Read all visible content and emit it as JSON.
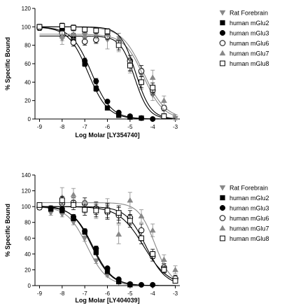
{
  "chart_data": [
    {
      "type": "scatter",
      "xlabel": "Log Molar [LY354740]",
      "ylabel": "% Specific Bound",
      "xlim": [
        -9.2,
        -2.8
      ],
      "ylim": [
        0,
        120
      ],
      "xticks": [
        "-9",
        "-8",
        "-7",
        "-6",
        "-5",
        "-4",
        "-3"
      ],
      "yticks": [
        "0",
        "20",
        "40",
        "60",
        "80",
        "100",
        "120"
      ],
      "legend": "right",
      "grid": false,
      "series": [
        {
          "name": "Rat Forebrain",
          "marker": "triangle-down",
          "fill": "#888888",
          "color": "#888888",
          "x": [
            -9,
            -8,
            -7.5,
            -7,
            -6.5,
            -6,
            -5.5,
            -5,
            -4.5,
            -4,
            -3.5,
            -3
          ],
          "y": [
            100,
            87,
            90,
            91,
            88,
            86,
            83,
            58,
            48,
            26,
            10,
            1
          ],
          "err": [
            3,
            6,
            5,
            4,
            5,
            10,
            10,
            8,
            7,
            6,
            4,
            2
          ],
          "curve": {
            "top": 100,
            "bottom": 0,
            "logec50": -4.4,
            "hill": 0.9
          }
        },
        {
          "name": "human mGlu2",
          "marker": "square",
          "fill": "#000000",
          "color": "#000000",
          "x": [
            -9,
            -8,
            -7.5,
            -7,
            -6.5,
            -6,
            -5.5,
            -5,
            -4.5
          ],
          "y": [
            100,
            95,
            86,
            60,
            33,
            12,
            4,
            2,
            1
          ],
          "err": [
            2,
            3,
            3,
            3,
            3,
            2,
            1,
            1,
            1
          ],
          "curve": {
            "top": 100,
            "bottom": 0,
            "logec50": -6.85,
            "hill": 1.0
          }
        },
        {
          "name": "human mGlu3",
          "marker": "circle",
          "fill": "#000000",
          "color": "#000000",
          "x": [
            -9,
            -8,
            -7.5,
            -7,
            -6.5,
            -6,
            -5.5,
            -5,
            -4.5,
            -4
          ],
          "y": [
            100,
            97,
            90,
            63,
            41,
            19,
            7,
            3,
            1,
            0
          ],
          "err": [
            2,
            3,
            3,
            3,
            3,
            2,
            1,
            1,
            1,
            1
          ],
          "curve": {
            "top": 100,
            "bottom": 0,
            "logec50": -6.7,
            "hill": 1.0
          }
        },
        {
          "name": "human mGlu6",
          "marker": "circle",
          "fill": "#ffffff",
          "color": "#000000",
          "x": [
            -9,
            -8,
            -7.5,
            -7,
            -6.5,
            -6,
            -5.5,
            -5,
            -4.5,
            -4,
            -3.5
          ],
          "y": [
            99,
            93,
            83,
            84,
            86,
            90,
            84,
            63,
            52,
            31,
            12
          ],
          "err": [
            3,
            4,
            4,
            4,
            4,
            4,
            5,
            6,
            6,
            5,
            3
          ],
          "curve": {
            "top": 90,
            "bottom": 0,
            "logec50": -4.8,
            "hill": 1.4
          }
        },
        {
          "name": "human mGlu7",
          "marker": "triangle-up",
          "fill": "#888888",
          "color": "#888888",
          "x": [
            -8,
            -7.5,
            -7,
            -6.5,
            -6,
            -5.5,
            -5,
            -4.5,
            -4,
            -3.5,
            -3
          ],
          "y": [
            90,
            92,
            91,
            92,
            92,
            87,
            60,
            40,
            45,
            20,
            2
          ],
          "err": [
            5,
            5,
            5,
            5,
            5,
            6,
            7,
            8,
            8,
            5,
            3
          ],
          "curve": {
            "top": 92,
            "bottom": 0,
            "logec50": -4.4,
            "hill": 1.0
          }
        },
        {
          "name": "human mGlu8",
          "marker": "square",
          "fill": "#ffffff",
          "color": "#000000",
          "x": [
            -9,
            -8,
            -7.5,
            -7,
            -6.5,
            -6,
            -5.5,
            -5,
            -4.5,
            -4,
            -3.5
          ],
          "y": [
            100,
            101,
            99,
            97,
            96,
            95,
            80,
            58,
            40,
            34,
            3
          ],
          "err": [
            2,
            3,
            3,
            3,
            3,
            3,
            5,
            6,
            6,
            5,
            2
          ],
          "curve": {
            "top": 100,
            "bottom": 0,
            "logec50": -4.75,
            "hill": 1.3
          }
        }
      ]
    },
    {
      "type": "scatter",
      "xlabel": "Log Molar [LY404039]",
      "ylabel": "% Specific Bound",
      "xlim": [
        -9.2,
        -2.8
      ],
      "ylim": [
        0,
        140
      ],
      "xticks": [
        "-9",
        "-8",
        "-7",
        "-6",
        "-5",
        "-4",
        "-3"
      ],
      "yticks": [
        "0",
        "20",
        "40",
        "60",
        "80",
        "100",
        "120",
        "140"
      ],
      "legend": "right",
      "grid": false,
      "series": [
        {
          "name": "Rat Forebrain",
          "marker": "triangle-down",
          "fill": "#888888",
          "color": "#888888",
          "x": [
            -9,
            -8.5,
            -8,
            -7.5,
            -7,
            -6.5,
            -6,
            -5.5,
            -5
          ],
          "y": [
            99,
            92,
            90,
            80,
            60,
            31,
            13,
            4,
            1
          ],
          "err": [
            3,
            3,
            3,
            3,
            4,
            3,
            2,
            2,
            1
          ],
          "curve": {
            "top": 100,
            "bottom": 0,
            "logec50": -6.9,
            "hill": 1.0
          }
        },
        {
          "name": "human mGlu2",
          "marker": "square",
          "fill": "#000000",
          "color": "#000000",
          "x": [
            -9,
            -8.5,
            -8,
            -7.5,
            -7,
            -6.5,
            -6,
            -5.5,
            -5
          ],
          "y": [
            101,
            97,
            95,
            85,
            68,
            42,
            18,
            5,
            1
          ],
          "err": [
            2,
            3,
            3,
            3,
            3,
            3,
            2,
            1,
            1
          ],
          "curve": {
            "top": 101,
            "bottom": 0,
            "logec50": -6.7,
            "hill": 1.0
          }
        },
        {
          "name": "human mGlu3",
          "marker": "circle",
          "fill": "#000000",
          "color": "#000000",
          "x": [
            -9,
            -8.5,
            -8,
            -7.5,
            -7,
            -6.5,
            -6,
            -5.5,
            -5,
            -4.5,
            -4
          ],
          "y": [
            100,
            98,
            97,
            87,
            69,
            47,
            22,
            8,
            2,
            1,
            1
          ],
          "err": [
            2,
            3,
            3,
            3,
            3,
            3,
            2,
            1,
            1,
            1,
            1
          ],
          "curve": {
            "top": 100,
            "bottom": 0,
            "logec50": -6.65,
            "hill": 1.0
          }
        },
        {
          "name": "human mGlu6",
          "marker": "circle",
          "fill": "#ffffff",
          "color": "#000000",
          "x": [
            -9,
            -8,
            -7.5,
            -7,
            -6.5,
            -6,
            -5.5,
            -5,
            -4.5,
            -4,
            -3.5,
            -3
          ],
          "y": [
            99,
            104,
            105,
            104,
            98,
            93,
            89,
            86,
            70,
            37,
            23,
            9
          ],
          "err": [
            3,
            5,
            6,
            7,
            8,
            9,
            10,
            9,
            8,
            6,
            5,
            4
          ],
          "curve": {
            "top": 100,
            "bottom": 0,
            "logec50": -4.4,
            "hill": 0.8
          }
        },
        {
          "name": "human mGlu7",
          "marker": "triangle-up",
          "fill": "#888888",
          "color": "#888888",
          "x": [
            -8,
            -7.5,
            -7,
            -6.5,
            -6,
            -5.5,
            -5,
            -4.5,
            -4,
            -3.5,
            -3
          ],
          "y": [
            112,
            115,
            100,
            95,
            100,
            65,
            108,
            88,
            70,
            33,
            20
          ],
          "err": [
            12,
            8,
            8,
            10,
            10,
            12,
            10,
            8,
            8,
            6,
            5
          ],
          "curve": {
            "top": 105,
            "bottom": 0,
            "logec50": -3.9,
            "hill": 1.2
          }
        },
        {
          "name": "human mGlu8",
          "marker": "square",
          "fill": "#ffffff",
          "color": "#000000",
          "x": [
            -9,
            -8,
            -7.5,
            -7,
            -6.5,
            -6,
            -5.5,
            -5,
            -4.5,
            -4,
            -3.5,
            -3
          ],
          "y": [
            102,
            108,
            102,
            96,
            95,
            95,
            92,
            82,
            60,
            40,
            20,
            6
          ],
          "err": [
            3,
            5,
            6,
            7,
            8,
            9,
            9,
            8,
            7,
            6,
            4,
            3
          ],
          "curve": {
            "top": 100,
            "bottom": 0,
            "logec50": -4.3,
            "hill": 1.0
          }
        }
      ]
    }
  ]
}
